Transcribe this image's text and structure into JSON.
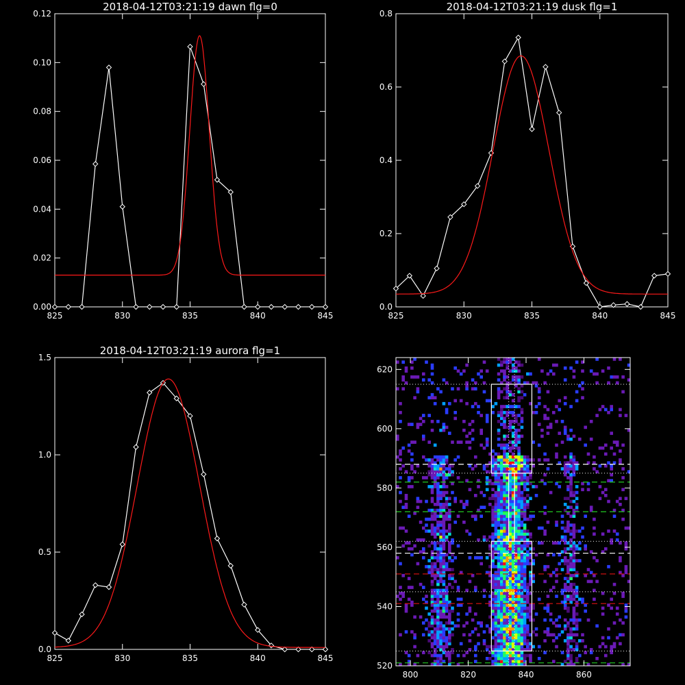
{
  "panels": [
    {
      "title": "2018-04-12T03:21:19 dawn flg=0",
      "chart_data": {
        "type": "line",
        "xlim": [
          825,
          845
        ],
        "ylim": [
          0,
          0.12
        ],
        "xticks": [
          825,
          830,
          835,
          840,
          845
        ],
        "yticks": [
          0.0,
          0.02,
          0.04,
          0.06,
          0.08,
          0.1,
          0.12
        ],
        "ytick_labels": [
          "0.00",
          "0.02",
          "0.04",
          "0.06",
          "0.08",
          "0.10",
          "0.12"
        ],
        "series": [
          {
            "style": "data",
            "color": "#ffffff",
            "marker": "diamond",
            "x": [
              825,
              826,
              827,
              828,
              829,
              830,
              831,
              832,
              833,
              834,
              835,
              836,
              837,
              838,
              839,
              840,
              841,
              842,
              843,
              844,
              845
            ],
            "y": [
              0,
              0,
              0,
              0.0585,
              0.098,
              0.041,
              0,
              0,
              0,
              0,
              0.1065,
              0.0912,
              0.052,
              0.047,
              0,
              0,
              0,
              0,
              0,
              0,
              0
            ]
          },
          {
            "style": "fit",
            "color": "#ff1a1a",
            "gaussian": {
              "amplitude": 0.098,
              "center": 835.7,
              "sigma": 0.72,
              "offset": 0.013
            }
          }
        ]
      }
    },
    {
      "title": "2018-04-12T03:21:19 dusk flg=1",
      "chart_data": {
        "type": "line",
        "xlim": [
          825,
          845
        ],
        "ylim": [
          0,
          0.8
        ],
        "xticks": [
          825,
          830,
          835,
          840,
          845
        ],
        "yticks": [
          0.0,
          0.2,
          0.4,
          0.6,
          0.8
        ],
        "ytick_labels": [
          "0.0",
          "0.2",
          "0.4",
          "0.6",
          "0.8"
        ],
        "series": [
          {
            "style": "data",
            "color": "#ffffff",
            "marker": "diamond",
            "x": [
              825,
              826,
              827,
              828,
              829,
              830,
              831,
              832,
              833,
              834,
              835,
              836,
              837,
              838,
              839,
              840,
              841,
              842,
              843,
              844,
              845
            ],
            "y": [
              0.05,
              0.085,
              0.03,
              0.105,
              0.245,
              0.28,
              0.33,
              0.42,
              0.67,
              0.735,
              0.485,
              0.655,
              0.53,
              0.165,
              0.065,
              0,
              0.005,
              0.008,
              0,
              0.085,
              0.09
            ]
          },
          {
            "style": "fit",
            "color": "#ff1a1a",
            "gaussian": {
              "amplitude": 0.65,
              "center": 834.2,
              "sigma": 2.05,
              "offset": 0.035
            }
          }
        ]
      }
    },
    {
      "title": "2018-04-12T03:21:19 aurora flg=1",
      "chart_data": {
        "type": "line",
        "xlim": [
          825,
          845
        ],
        "ylim": [
          0,
          1.5
        ],
        "xticks": [
          825,
          830,
          835,
          840,
          845
        ],
        "yticks": [
          0.0,
          0.5,
          1.0,
          1.5
        ],
        "ytick_labels": [
          "0.0",
          "0.5",
          "1.0",
          "1.5"
        ],
        "series": [
          {
            "style": "data",
            "color": "#ffffff",
            "marker": "diamond",
            "x": [
              825,
              826,
              827,
              828,
              829,
              830,
              831,
              832,
              833,
              834,
              835,
              836,
              837,
              838,
              839,
              840,
              841,
              842,
              843,
              844,
              845
            ],
            "y": [
              0.085,
              0.045,
              0.18,
              0.33,
              0.32,
              0.54,
              1.04,
              1.32,
              1.37,
              1.29,
              1.2,
              0.9,
              0.57,
              0.43,
              0.23,
              0.1,
              0.02,
              0,
              0,
              0,
              0
            ]
          },
          {
            "style": "fit",
            "color": "#ff1a1a",
            "gaussian": {
              "amplitude": 1.38,
              "center": 833.4,
              "sigma": 2.3,
              "offset": 0.01
            }
          }
        ]
      }
    }
  ],
  "image_panel": {
    "chart_data": {
      "type": "heatmap",
      "xlim": [
        795,
        876
      ],
      "ylim": [
        520,
        624
      ],
      "xticks": [
        800,
        820,
        840,
        860
      ],
      "yticks": [
        520,
        540,
        560,
        580,
        600,
        620
      ],
      "bright_columns": [
        {
          "center": 810,
          "width": 6,
          "intensity": 0.45
        },
        {
          "center": 834,
          "width": 9,
          "intensity": 0.85
        },
        {
          "center": 855,
          "width": 5,
          "intensity": 0.3
        }
      ],
      "vertical_dotted_lines_x": [
        834,
        836
      ],
      "horizontal_dotted_lines_y": [
        525,
        545,
        562,
        585,
        615
      ],
      "dashed_lines": [
        {
          "y": 521,
          "color": "#22cc22"
        },
        {
          "y": 541,
          "color": "#cc1111"
        },
        {
          "y": 551,
          "color": "#cc1111"
        },
        {
          "y": 558,
          "color": "#ffffff"
        },
        {
          "y": 572,
          "color": "#22cc22"
        },
        {
          "y": 582,
          "color": "#22cc22"
        },
        {
          "y": 588,
          "color": "#ffffff"
        }
      ],
      "boxes": [
        {
          "x0": 828,
          "x1": 842,
          "y0": 525,
          "y1": 562
        },
        {
          "x0": 834,
          "x1": 836,
          "y0": 562,
          "y1": 585
        },
        {
          "x0": 828,
          "x1": 842,
          "y0": 585,
          "y1": 615
        }
      ],
      "colormap": [
        "#000000",
        "#4b0a78",
        "#6a1ab5",
        "#2a3cff",
        "#00a0ff",
        "#00e0d0",
        "#20ff60",
        "#d8ff00",
        "#ff9a00",
        "#ff1010"
      ]
    }
  }
}
